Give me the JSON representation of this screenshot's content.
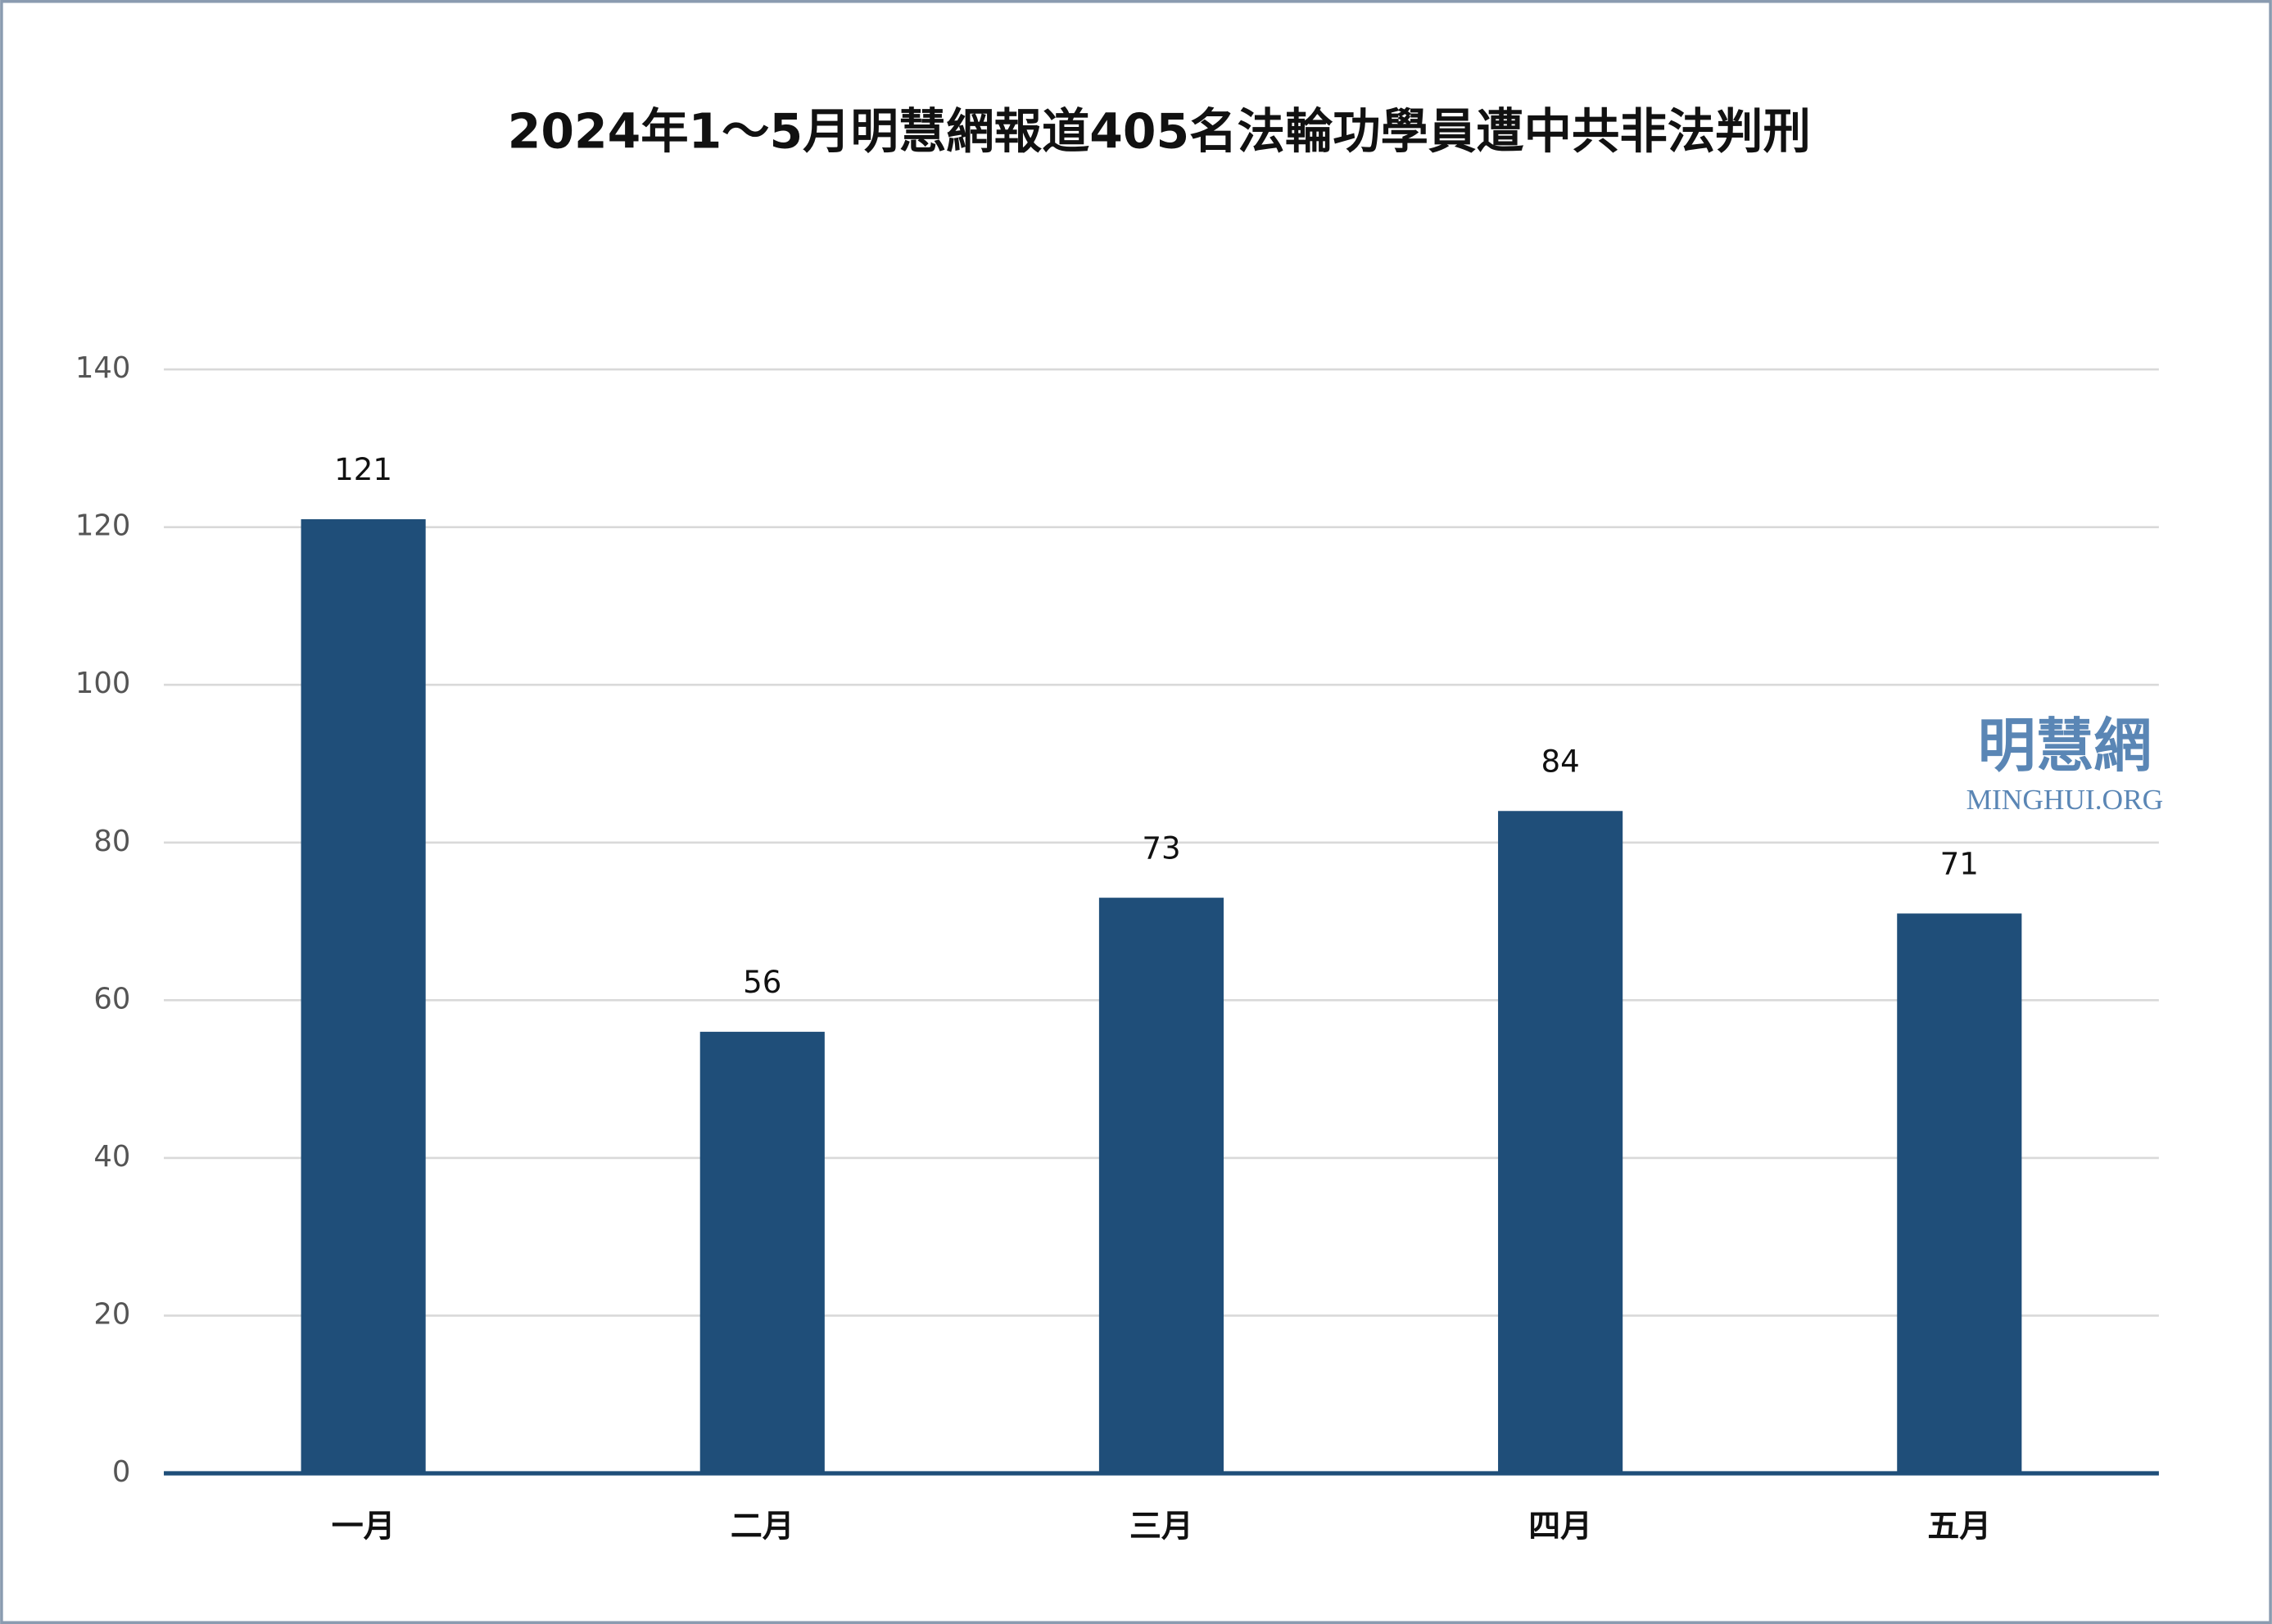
{
  "chart_data": {
    "type": "bar",
    "title": "2024年1～5月明慧網報道405名法輪功學員遭中共非法判刑",
    "categories": [
      "一月",
      "二月",
      "三月",
      "四月",
      "五月"
    ],
    "values": [
      121,
      56,
      73,
      84,
      71
    ],
    "color": "#1f4e79",
    "ylim": [
      0,
      140
    ],
    "yticks": [
      0,
      20,
      40,
      60,
      80,
      100,
      120,
      140
    ],
    "grid": true
  },
  "watermark": {
    "name": "明慧網",
    "url": "MINGHUI.ORG"
  }
}
